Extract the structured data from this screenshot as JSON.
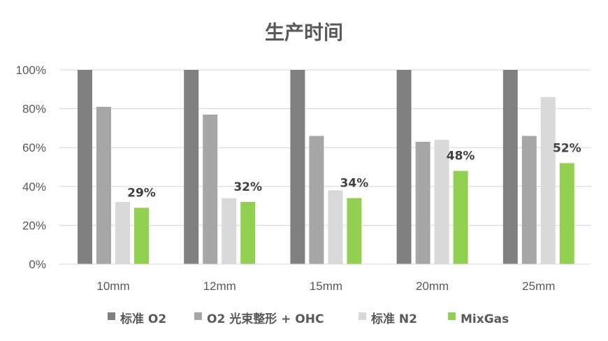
{
  "chart_data": {
    "type": "bar",
    "title": "生产时间",
    "xlabel": "",
    "ylabel": "",
    "categories": [
      "10mm",
      "12mm",
      "15mm",
      "20mm",
      "25mm"
    ],
    "yticks": [
      "0%",
      "20%",
      "40%",
      "60%",
      "80%",
      "100%"
    ],
    "ylim": [
      0,
      100
    ],
    "grid": true,
    "legend_position": "bottom",
    "series": [
      {
        "name": "标准 O2",
        "color": "#808080",
        "values": [
          100,
          100,
          100,
          100,
          100
        ]
      },
      {
        "name": "O2 光束整形 + OHC",
        "color": "#a6a6a6",
        "values": [
          81,
          77,
          66,
          63,
          66
        ]
      },
      {
        "name": "标准 N2",
        "color": "#d9d9d9",
        "values": [
          32,
          34,
          38,
          64,
          86
        ]
      },
      {
        "name": "MixGas",
        "color": "#92d050",
        "values": [
          29,
          32,
          34,
          48,
          52
        ],
        "data_labels": [
          "29%",
          "32%",
          "34%",
          "48%",
          "52%"
        ]
      }
    ]
  }
}
